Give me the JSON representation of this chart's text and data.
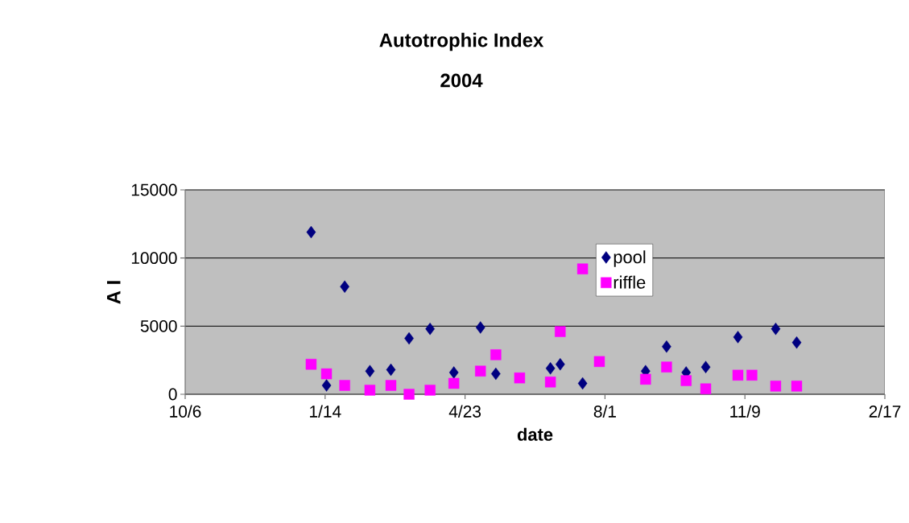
{
  "chart_data": {
    "type": "scatter",
    "title": "Autotrophic Index",
    "subtitle": "2004",
    "xlabel": "date",
    "ylabel": "A I",
    "x": [
      "2004-01-04",
      "2004-01-15",
      "2004-01-28",
      "2004-02-15",
      "2004-03-01",
      "2004-03-14",
      "2004-03-29",
      "2004-04-15",
      "2004-05-04",
      "2004-05-15",
      "2004-06-01",
      "2004-06-23",
      "2004-06-30",
      "2004-07-16",
      "2004-07-28",
      "2004-08-30",
      "2004-09-14",
      "2004-09-28",
      "2004-10-12",
      "2004-11-04",
      "2004-11-14",
      "2004-12-01",
      "2004-12-16"
    ],
    "series": [
      {
        "name": "pool",
        "color": "#000080",
        "marker": "diamond",
        "values": [
          11900,
          650,
          7900,
          1700,
          1800,
          4100,
          4800,
          1600,
          4900,
          1500,
          null,
          1900,
          2200,
          800,
          null,
          1700,
          3500,
          1600,
          2000,
          4200,
          null,
          4800,
          3800
        ]
      },
      {
        "name": "riffle",
        "color": "#ff00ff",
        "marker": "square",
        "values": [
          2200,
          1500,
          650,
          300,
          650,
          0,
          300,
          800,
          1700,
          2900,
          1200,
          900,
          4600,
          9200,
          2400,
          1100,
          2000,
          1000,
          400,
          1400,
          1400,
          600,
          600
        ]
      }
    ],
    "xlim": [
      "2003-10-06",
      "2005-02-17"
    ],
    "xticks": [
      {
        "value": "2003-10-06",
        "label": "10/6"
      },
      {
        "value": "2004-01-14",
        "label": "1/14"
      },
      {
        "value": "2004-04-23",
        "label": "4/23"
      },
      {
        "value": "2004-08-01",
        "label": "8/1"
      },
      {
        "value": "2004-11-09",
        "label": "11/9"
      },
      {
        "value": "2005-02-17",
        "label": "2/17"
      }
    ],
    "ylim": [
      0,
      15000
    ],
    "yticks": [
      0,
      5000,
      10000,
      15000
    ],
    "grid": "y",
    "legend": "top"
  }
}
